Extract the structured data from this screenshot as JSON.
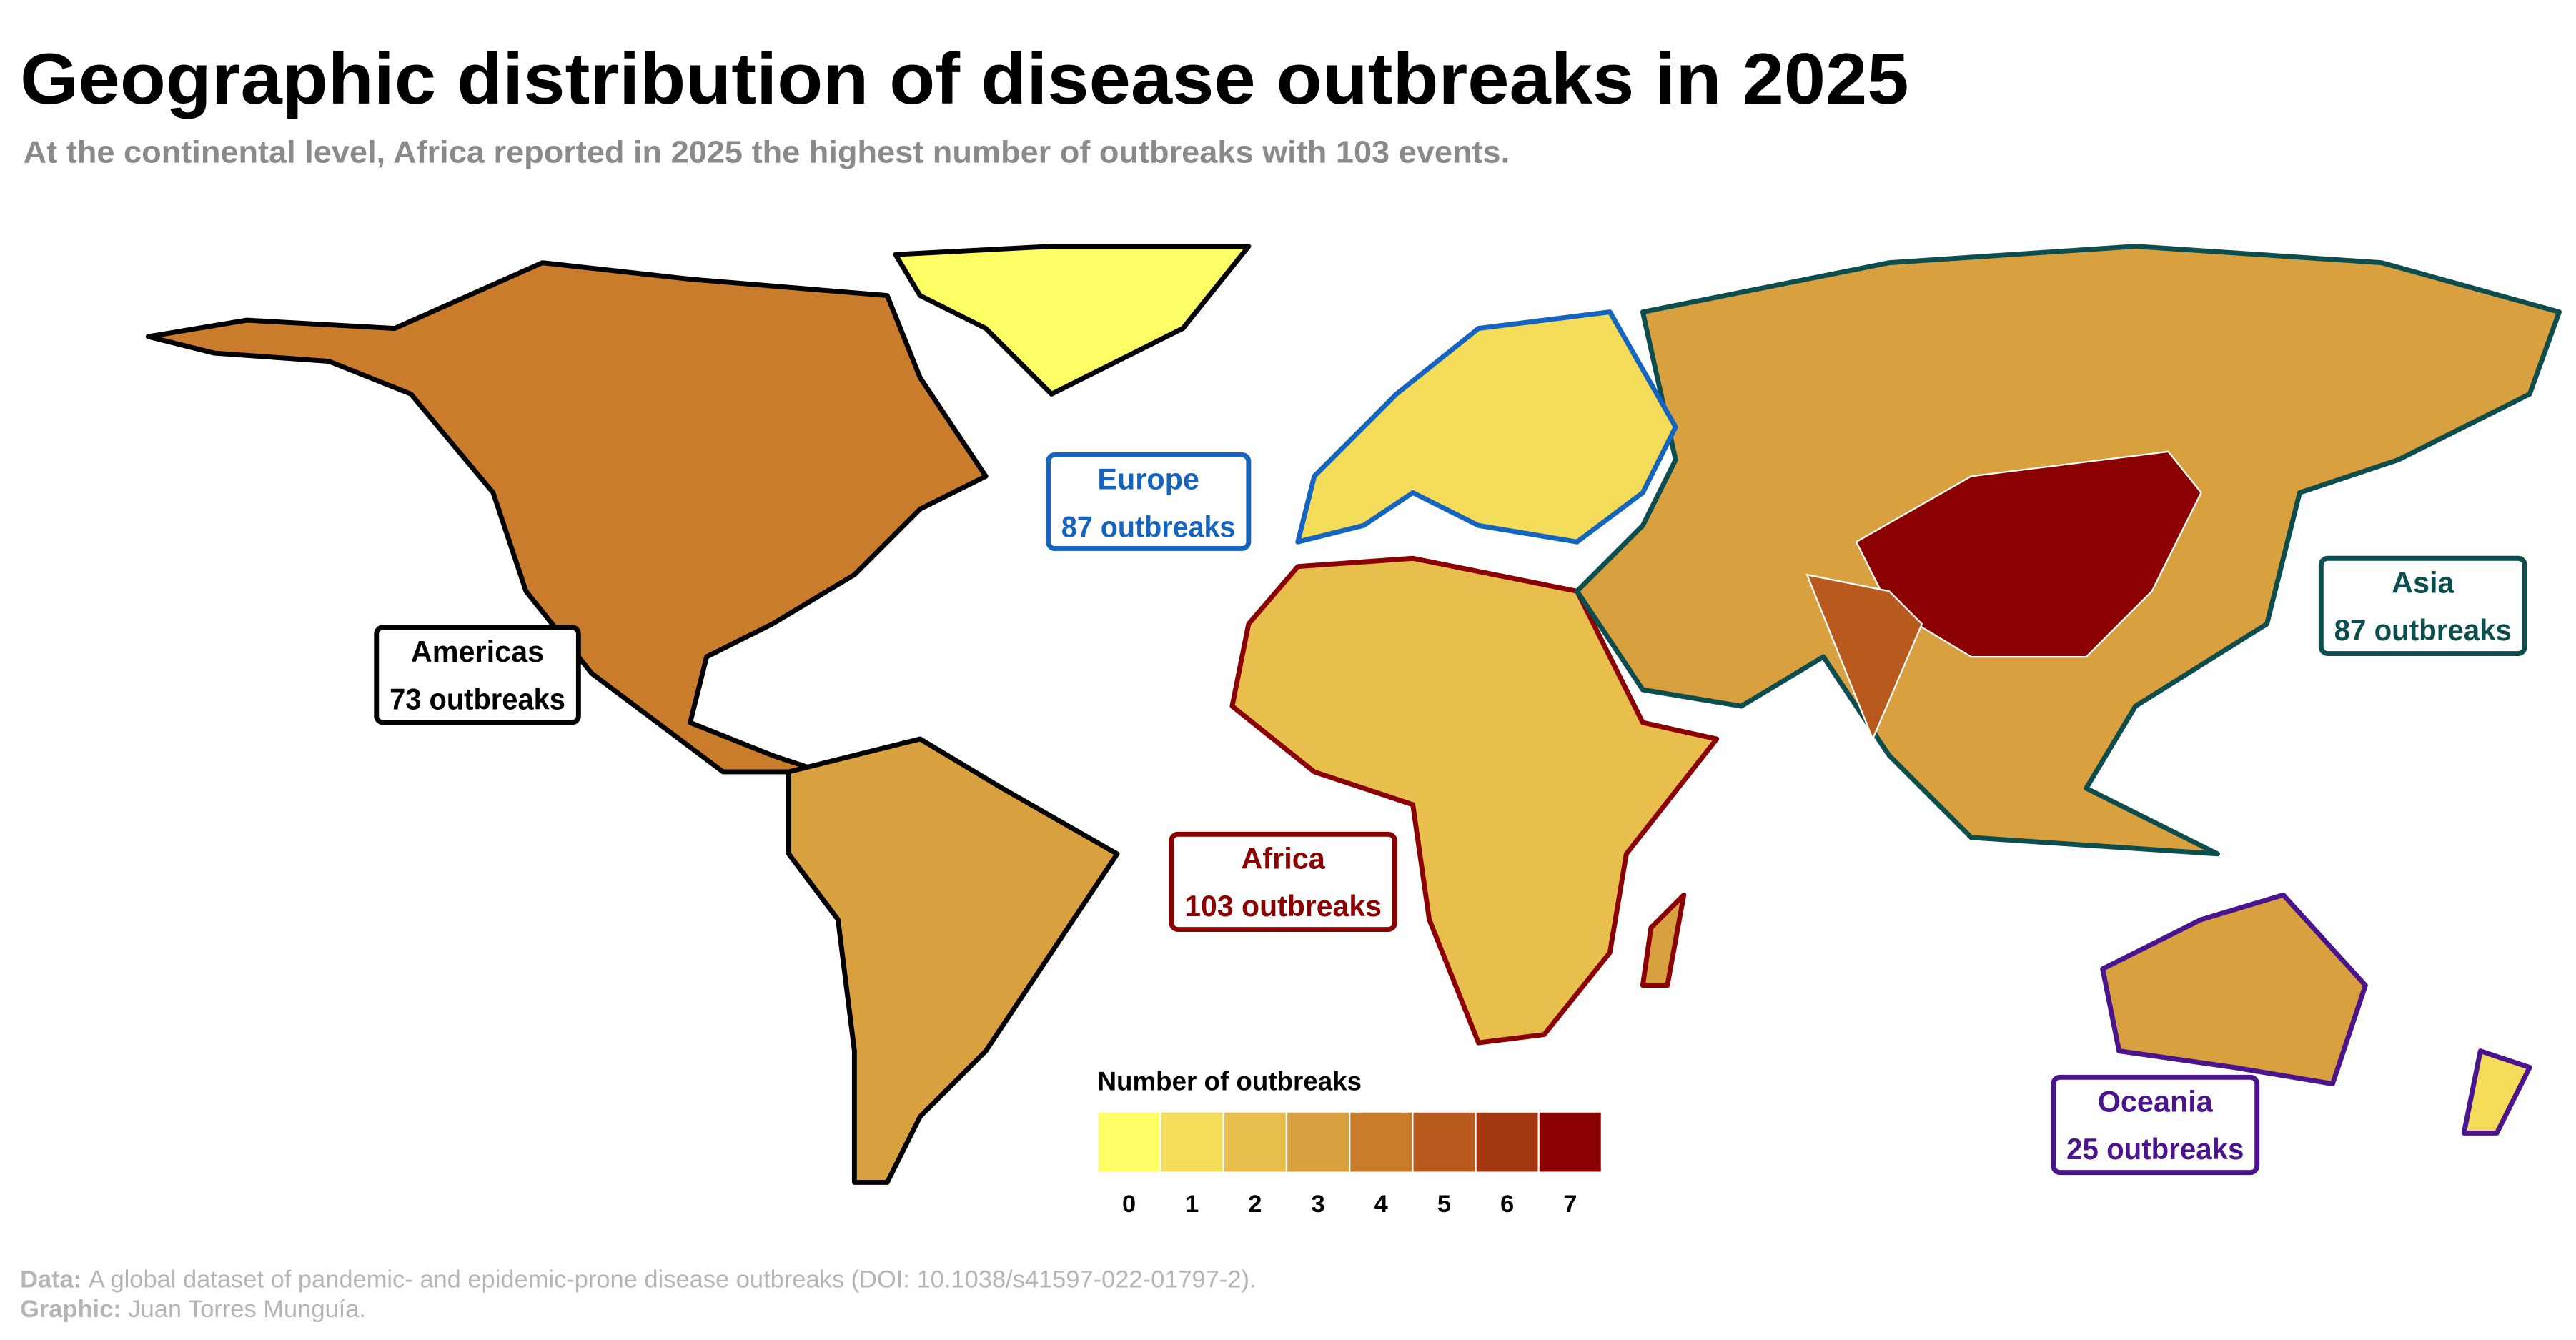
{
  "title": "Geographic distribution of disease outbreaks in 2025",
  "subtitle": "At the continental level, Africa reported in 2025 the highest number of outbreaks with 103 events.",
  "continents": [
    {
      "name": "Europe",
      "count_label": "87 outbreaks",
      "color": "#1565c0"
    },
    {
      "name": "Americas",
      "count_label": "73 outbreaks",
      "color": "#000000"
    },
    {
      "name": "Africa",
      "count_label": "103 outbreaks",
      "color": "#8b0000"
    },
    {
      "name": "Asia",
      "count_label": "87 outbreaks",
      "color": "#0d4d4d"
    },
    {
      "name": "Oceania",
      "count_label": "25 outbreaks",
      "color": "#4a148c"
    }
  ],
  "legend": {
    "title": "Number of outbreaks",
    "ticks": [
      0,
      1,
      2,
      3,
      4,
      5,
      6,
      7
    ],
    "colors": [
      "#ffff66",
      "#f3dc5a",
      "#e8bf4c",
      "#d9a03f",
      "#c97c2c",
      "#b85a1e",
      "#a3370f",
      "#8b0000"
    ]
  },
  "source": {
    "data_label": "Data:",
    "data_text": "A global dataset of pandemic- and epidemic-prone disease outbreaks (DOI: 10.1038/s41597-022-01797-2).",
    "graphic_label": "Graphic:",
    "graphic_text": "Juan Torres Munguía."
  }
}
